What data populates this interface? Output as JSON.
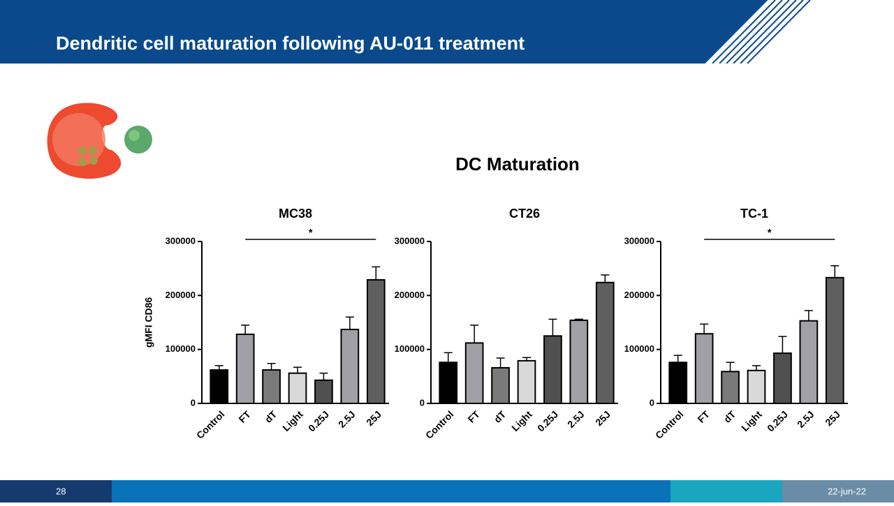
{
  "header": {
    "title": "Dendritic cell maturation following AU-011 treatment"
  },
  "figure_title": "DC Maturation",
  "footer": {
    "page": "28",
    "date": "22-jun-22"
  },
  "chart_data": [
    {
      "type": "bar",
      "title": "MC38",
      "ylabel": "gMFI CD86",
      "categories": [
        "Control",
        "FT",
        "dT",
        "Light",
        "0.25J",
        "2.5J",
        "25J"
      ],
      "values": [
        62000,
        128000,
        62000,
        56000,
        43000,
        137000,
        229000
      ],
      "errors": [
        8000,
        17000,
        12000,
        11000,
        13000,
        23000,
        24000
      ],
      "colors": [
        "#000000",
        "#a0a0a6",
        "#7a7a7a",
        "#d9d9d9",
        "#505050",
        "#a0a0a6",
        "#5f5f5f"
      ],
      "ylim": [
        0,
        300000
      ],
      "yticks": [
        0,
        100000,
        200000,
        300000
      ],
      "annotation": "*"
    },
    {
      "type": "bar",
      "title": "CT26",
      "categories": [
        "Control",
        "FT",
        "dT",
        "Light",
        "0.25J",
        "2.5J",
        "25J"
      ],
      "values": [
        76000,
        112000,
        66000,
        79000,
        125000,
        154000,
        224000
      ],
      "errors": [
        18000,
        33000,
        18000,
        6000,
        31000,
        2000,
        14000
      ],
      "colors": [
        "#000000",
        "#a0a0a6",
        "#7a7a7a",
        "#d9d9d9",
        "#505050",
        "#a0a0a6",
        "#5f5f5f"
      ],
      "ylim": [
        0,
        300000
      ],
      "yticks": [
        0,
        100000,
        200000,
        300000
      ]
    },
    {
      "type": "bar",
      "title": "TC-1",
      "categories": [
        "Control",
        "FT",
        "dT",
        "Light",
        "0.25J",
        "2.5J",
        "25J"
      ],
      "values": [
        76000,
        129000,
        59000,
        61000,
        93000,
        153000,
        233000
      ],
      "errors": [
        13000,
        18000,
        17000,
        9000,
        31000,
        19000,
        22000
      ],
      "colors": [
        "#000000",
        "#a0a0a6",
        "#7a7a7a",
        "#d9d9d9",
        "#505050",
        "#a0a0a6",
        "#5f5f5f"
      ],
      "ylim": [
        0,
        300000
      ],
      "yticks": [
        0,
        100000,
        200000,
        300000
      ],
      "annotation": "*"
    }
  ]
}
